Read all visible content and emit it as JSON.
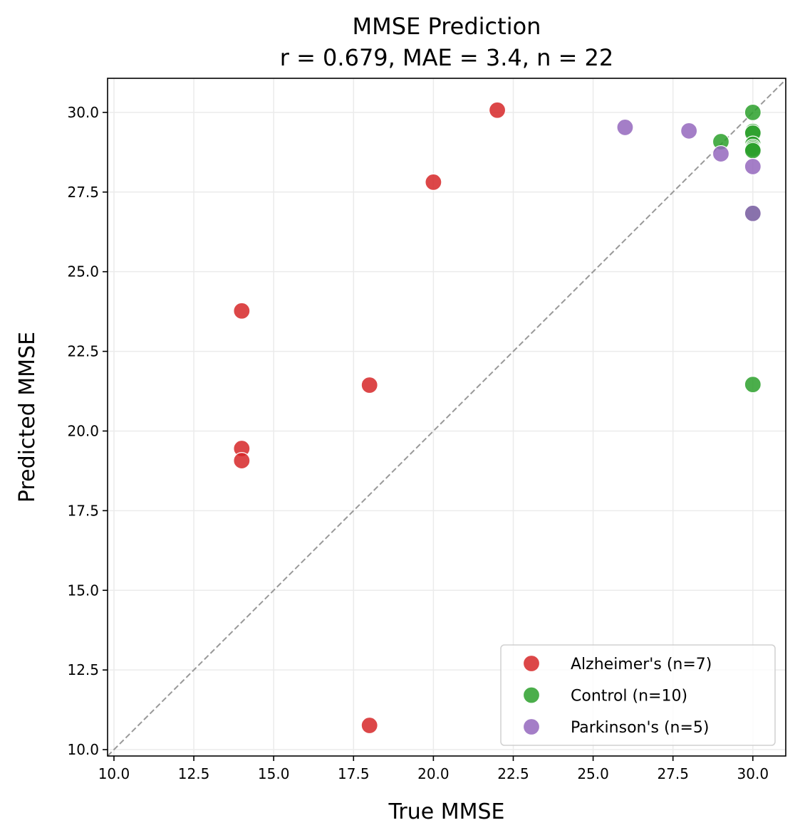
{
  "chart_data": {
    "type": "scatter",
    "title": "MMSE Prediction",
    "subtitle": "r = 0.679, MAE = 3.4, n = 22",
    "xlabel": "True MMSE",
    "ylabel": "Predicted MMSE",
    "xlim": [
      9.8,
      31.03
    ],
    "ylim": [
      9.8,
      31.07
    ],
    "xticks": [
      10.0,
      12.5,
      15.0,
      17.5,
      20.0,
      22.5,
      25.0,
      27.5,
      30.0
    ],
    "yticks": [
      10.0,
      12.5,
      15.0,
      17.5,
      20.0,
      22.5,
      25.0,
      27.5,
      30.0
    ],
    "xtick_labels": [
      "10.0",
      "12.5",
      "15.0",
      "17.5",
      "20.0",
      "22.5",
      "25.0",
      "27.5",
      "30.0"
    ],
    "ytick_labels": [
      "10.0",
      "12.5",
      "15.0",
      "17.5",
      "20.0",
      "22.5",
      "25.0",
      "27.5",
      "30.0"
    ],
    "grid": true,
    "identity_line": true,
    "legend_position": "lower-right",
    "series": [
      {
        "name": "Alzheimer's (n=7)",
        "color": "#d62728",
        "x": [
          22,
          20,
          14,
          18,
          14,
          14,
          18
        ],
        "y": [
          30.07,
          27.81,
          23.77,
          21.44,
          19.45,
          19.07,
          10.76
        ]
      },
      {
        "name": "Control (n=10)",
        "color": "#2ca02c",
        "x": [
          30,
          29,
          30,
          30,
          30,
          30,
          30,
          30,
          30,
          30
        ],
        "y": [
          30.0,
          29.08,
          29.4,
          29.35,
          29.0,
          28.9,
          28.85,
          28.8,
          26.83,
          21.46
        ]
      },
      {
        "name": "Parkinson's (n=5)",
        "color": "#9467bd",
        "x": [
          26,
          28,
          29,
          30,
          30
        ],
        "y": [
          29.53,
          29.42,
          28.7,
          28.3,
          26.83
        ]
      }
    ]
  }
}
